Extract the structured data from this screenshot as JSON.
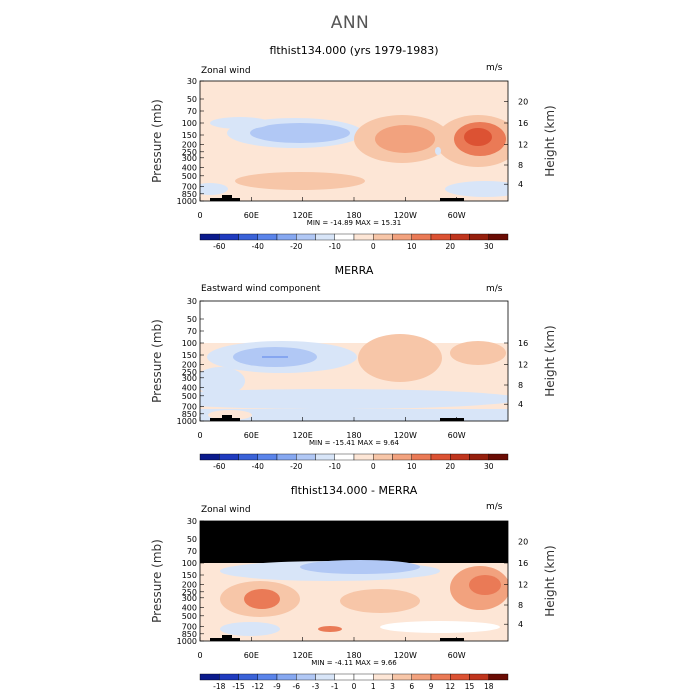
{
  "main_title": "ANN",
  "panels": [
    {
      "title": "flthist134.000 (yrs 1979-1983)",
      "left_label": "Zonal wind",
      "right_label": "m/s",
      "ylabel": "Pressure (mb)",
      "y2label": "Height (km)",
      "stats": "MIN = -14.89   MAX =  15.31"
    },
    {
      "title": "MERRA",
      "left_label": "Eastward wind component",
      "right_label": "m/s",
      "ylabel": "Pressure (mb)",
      "y2label": "Height (km)",
      "stats": "MIN = -15.41   MAX =   9.64"
    },
    {
      "title": "flthist134.000 - MERRA",
      "left_label": "Zonal wind",
      "right_label": "m/s",
      "ylabel": "Pressure (mb)",
      "y2label": "Height (km)",
      "stats": "MIN =  -4.11   MAX =   9.66"
    }
  ],
  "chart_data": [
    {
      "type": "heatmap",
      "title": "flthist134.000 (yrs 1979-1983)",
      "xticks": [
        "0",
        "60E",
        "120E",
        "180",
        "120W",
        "60W"
      ],
      "pressure_ticks": [
        "30",
        "50",
        "70",
        "100",
        "150",
        "200",
        "250",
        "300",
        "400",
        "500",
        "700",
        "850",
        "1000"
      ],
      "height_ticks": [
        "20",
        "16",
        "12",
        "8",
        "4"
      ],
      "min": -14.89,
      "max": 15.31,
      "colorbar": {
        "labels": [
          "-60",
          "-40",
          "-20",
          "-10",
          "0",
          "10",
          "20",
          "30"
        ],
        "colors": [
          "#0a1a8c",
          "#1f3bbf",
          "#3a62d8",
          "#5a84ea",
          "#86a8f1",
          "#b1c8f5",
          "#d8e5f8",
          "#ffffff",
          "#fde6d6",
          "#f7c6a8",
          "#f2a27e",
          "#ea7a56",
          "#dc5233",
          "#c0351d",
          "#961f0d",
          "#6a0c04"
        ]
      }
    },
    {
      "type": "heatmap",
      "title": "MERRA",
      "xticks": [
        "0",
        "60E",
        "120E",
        "180",
        "120W",
        "60W"
      ],
      "pressure_ticks": [
        "30",
        "50",
        "70",
        "100",
        "150",
        "200",
        "250",
        "300",
        "400",
        "500",
        "700",
        "850",
        "1000"
      ],
      "height_ticks": [
        "16",
        "12",
        "8",
        "4"
      ],
      "min": -15.41,
      "max": 9.64,
      "colorbar": {
        "labels": [
          "-60",
          "-40",
          "-20",
          "-10",
          "0",
          "10",
          "20",
          "30"
        ],
        "colors": [
          "#0a1a8c",
          "#1f3bbf",
          "#3a62d8",
          "#5a84ea",
          "#86a8f1",
          "#b1c8f5",
          "#d8e5f8",
          "#ffffff",
          "#fde6d6",
          "#f7c6a8",
          "#f2a27e",
          "#ea7a56",
          "#dc5233",
          "#c0351d",
          "#961f0d",
          "#6a0c04"
        ]
      }
    },
    {
      "type": "heatmap",
      "title": "flthist134.000 - MERRA",
      "xticks": [
        "0",
        "60E",
        "120E",
        "180",
        "120W",
        "60W"
      ],
      "pressure_ticks": [
        "30",
        "50",
        "70",
        "100",
        "150",
        "200",
        "250",
        "300",
        "400",
        "500",
        "700",
        "850",
        "1000"
      ],
      "height_ticks": [
        "20",
        "16",
        "12",
        "8",
        "4"
      ],
      "min": -4.11,
      "max": 9.66,
      "colorbar": {
        "labels": [
          "-18",
          "-15",
          "-12",
          "-9",
          "-6",
          "-3",
          "-1",
          "0",
          "1",
          "3",
          "6",
          "9",
          "12",
          "15",
          "18"
        ],
        "colors": [
          "#0a1a8c",
          "#1f3bbf",
          "#3a62d8",
          "#5a84ea",
          "#86a8f1",
          "#b1c8f5",
          "#d8e5f8",
          "#ffffff",
          "#ffffff",
          "#fde6d6",
          "#f7c6a8",
          "#f2a27e",
          "#ea7a56",
          "#dc5233",
          "#c0351d",
          "#6a0c04"
        ]
      }
    }
  ]
}
